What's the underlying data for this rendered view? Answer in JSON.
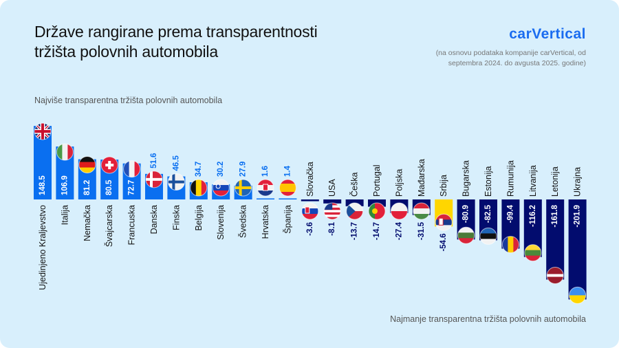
{
  "header": {
    "title_line1": "Države rangirane prema transparentnosti",
    "title_line2": "tržišta polovnih automobila",
    "logo": "carVertical",
    "note_line1": "(na osnovu podataka kompanije carVertical, od",
    "note_line2": "septembra 2024. do avgusta 2025. godine)"
  },
  "captions": {
    "top": "Najviše transparentna tržišta polovnih automobila",
    "bottom": "Najmanje transparentna tržišta polovnih automobila"
  },
  "colors": {
    "background": "#d8effc",
    "positive_bar": "#0a6ff0",
    "negative_bar": "#020c6e",
    "highlight_bar": "#ffd600",
    "positive_label": "#0a6ff0",
    "negative_label": "#020c6e"
  },
  "chart_data": {
    "type": "bar",
    "highlight": "Srbija",
    "categories": [
      "Ujedinjeno Kraljevstvo",
      "Italija",
      "Nemačka",
      "Švajcarska",
      "Francuska",
      "Danska",
      "Finska",
      "Belgija",
      "Slovenija",
      "Švedska",
      "Hrvatska",
      "Španija",
      "Slovačka",
      "USA",
      "Češka",
      "Portugal",
      "Poljska",
      "Mađarska",
      "Srbija",
      "Bugarska",
      "Estonija",
      "Rumunija",
      "Litvanija",
      "Letonija",
      "Ukrajna"
    ],
    "values": [
      148.5,
      106.9,
      81.2,
      80.5,
      72.7,
      51.6,
      46.5,
      34.7,
      30.2,
      27.9,
      1.6,
      1.4,
      -3.6,
      -8.1,
      -13.7,
      -14.7,
      -27.4,
      -31.5,
      -54.6,
      -80.9,
      -82.5,
      -99.4,
      -116.2,
      -161.8,
      -201.9
    ],
    "labels": [
      "148.5",
      "106.9",
      "81.2",
      "80.5",
      "72.7",
      "51.6",
      "46.5",
      "34.7",
      "30.2",
      "27.9",
      "1.6",
      "1.4",
      "-3.6",
      "-8.1",
      "-13.7",
      "-14.7",
      "-27.4",
      "-31.5",
      "-54.6",
      "-80.9",
      "-82.5",
      "-99.4",
      "-116.2",
      "-161.8",
      "-201.9"
    ],
    "flags": [
      "uk-flag",
      "italy-flag",
      "germany-flag",
      "switzerland-flag",
      "france-flag",
      "denmark-flag",
      "finland-flag",
      "belgium-flag",
      "slovenia-flag",
      "sweden-flag",
      "croatia-flag",
      "spain-flag",
      "slovakia-flag",
      "usa-flag",
      "czechia-flag",
      "portugal-flag",
      "poland-flag",
      "hungary-flag",
      "serbia-flag",
      "bulgaria-flag",
      "estonia-flag",
      "romania-flag",
      "lithuania-flag",
      "latvia-flag",
      "ukraine-flag"
    ],
    "title": "",
    "xlabel": "",
    "ylabel": "",
    "ylim": [
      -201.9,
      148.5
    ],
    "grid": false
  }
}
